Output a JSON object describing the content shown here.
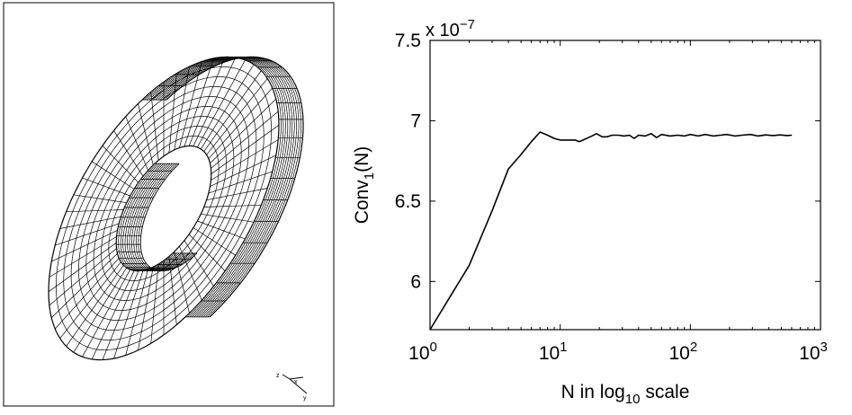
{
  "mesh_figure": {
    "axis_triad": {
      "z": "z",
      "x": "x",
      "y": "y"
    }
  },
  "chart_data": {
    "type": "line",
    "x_scale": "log10",
    "xlim": [
      1,
      1000
    ],
    "ylim": [
      5.7,
      7.5
    ],
    "y_multiplier": "x 10",
    "y_multiplier_exponent": "−7",
    "x_ticks": [
      {
        "base": "10",
        "exp": "0",
        "value": 1
      },
      {
        "base": "10",
        "exp": "1",
        "value": 10
      },
      {
        "base": "10",
        "exp": "2",
        "value": 100
      },
      {
        "base": "10",
        "exp": "3",
        "value": 1000
      }
    ],
    "y_ticks": [
      {
        "label": "6",
        "value": 6
      },
      {
        "label": "6.5",
        "value": 6.5
      },
      {
        "label": "7",
        "value": 7
      },
      {
        "label": "7.5",
        "value": 7.5
      }
    ],
    "xlabel": {
      "pre": "N in log",
      "sub": "10",
      "post": " scale"
    },
    "ylabel": {
      "pre": "Conv",
      "sub": "1",
      "post": "(N)"
    },
    "series": [
      {
        "color": "#000000",
        "x": [
          1,
          2,
          3,
          4,
          5,
          6,
          7,
          8,
          9,
          10,
          11,
          12,
          13,
          14,
          15,
          17,
          19,
          21,
          23,
          25,
          28,
          31,
          34,
          37,
          40,
          45,
          50,
          55,
          60,
          70,
          80,
          90,
          100,
          115,
          130,
          150,
          170,
          190,
          220,
          250,
          290,
          330,
          380,
          430,
          490,
          550,
          600
        ],
        "y": [
          5.7,
          6.1,
          6.44,
          6.7,
          6.79,
          6.87,
          6.93,
          6.91,
          6.89,
          6.88,
          6.88,
          6.88,
          6.88,
          6.87,
          6.88,
          6.9,
          6.92,
          6.9,
          6.9,
          6.91,
          6.91,
          6.905,
          6.91,
          6.89,
          6.91,
          6.905,
          6.92,
          6.895,
          6.915,
          6.905,
          6.91,
          6.905,
          6.915,
          6.905,
          6.915,
          6.905,
          6.91,
          6.915,
          6.905,
          6.91,
          6.915,
          6.905,
          6.912,
          6.908,
          6.912,
          6.908,
          6.91
        ]
      }
    ]
  }
}
